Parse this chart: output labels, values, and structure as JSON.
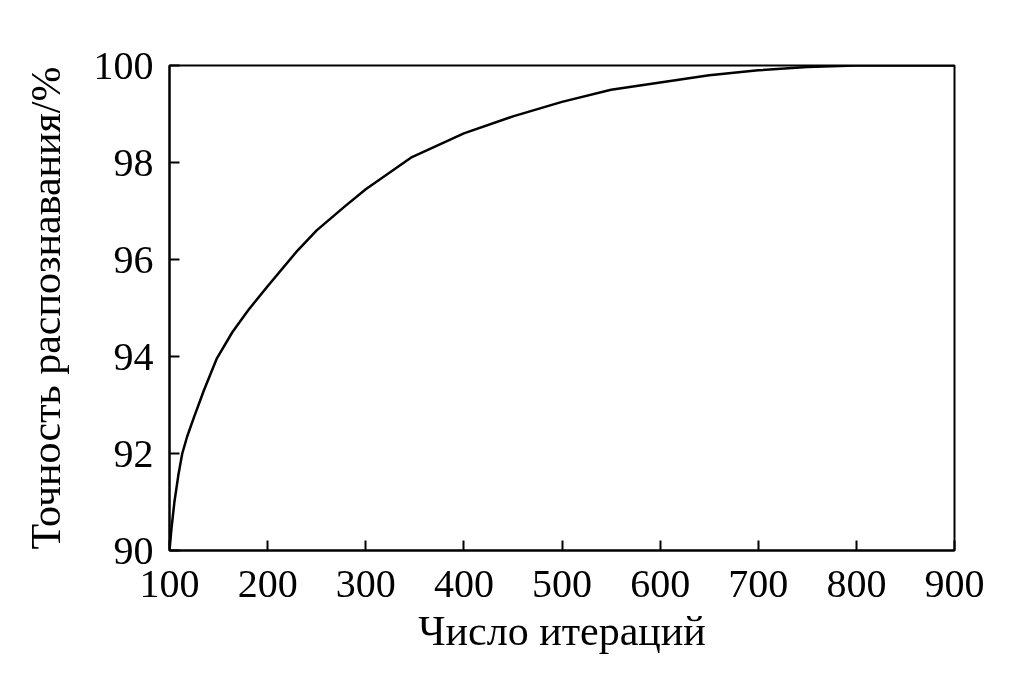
{
  "chart_data": {
    "type": "line",
    "xlabel": "Число итераций",
    "ylabel": "Точность распознавания/%",
    "x": [
      100,
      102,
      105,
      109,
      113,
      118,
      125,
      135,
      148,
      164,
      180,
      200,
      229,
      250,
      279,
      300,
      346,
      400,
      450,
      500,
      550,
      600,
      650,
      700,
      750,
      800,
      900
    ],
    "series": [
      {
        "color": "#000000",
        "values": [
          90.0,
          90.45,
          91.0,
          91.55,
          92.0,
          92.35,
          92.75,
          93.3,
          93.95,
          94.5,
          94.95,
          95.45,
          96.15,
          96.6,
          97.1,
          97.45,
          98.1,
          98.6,
          98.95,
          99.25,
          99.5,
          99.65,
          99.8,
          99.9,
          99.97,
          100,
          100
        ]
      }
    ],
    "xlim": [
      100,
      900
    ],
    "ylim": [
      90,
      100
    ],
    "xticks": [
      100,
      200,
      300,
      400,
      500,
      600,
      700,
      800,
      900
    ],
    "yticks": [
      90,
      92,
      94,
      96,
      98,
      100
    ],
    "line_style": "solid"
  }
}
